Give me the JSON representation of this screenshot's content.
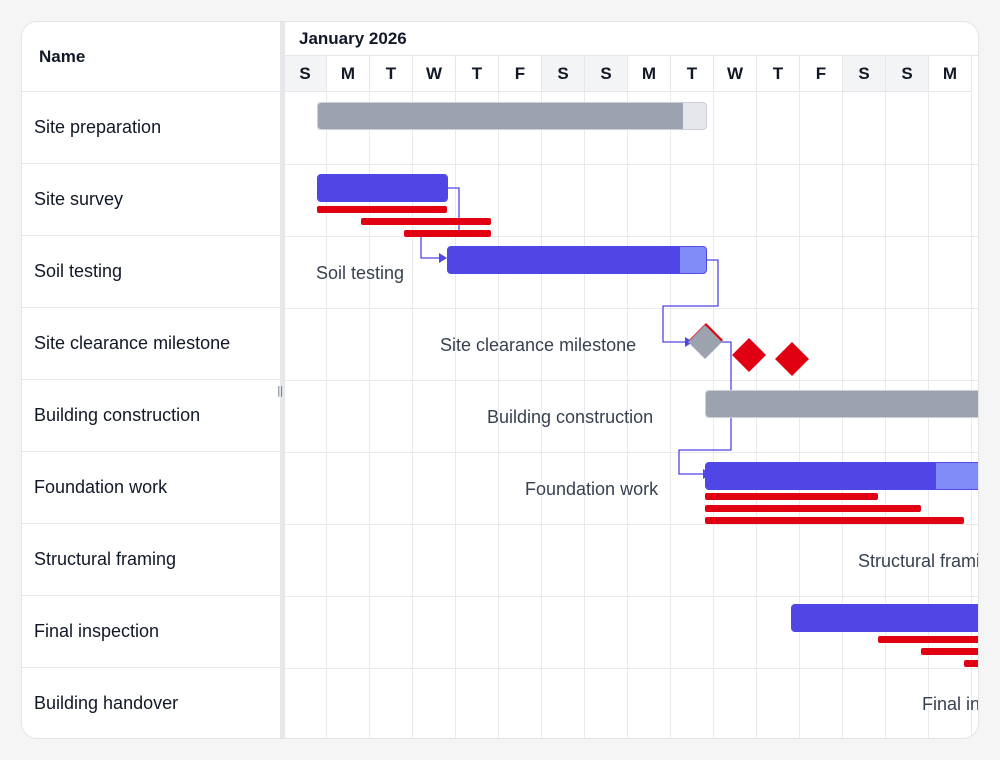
{
  "grid": {
    "header": "Name",
    "rows": [
      "Site preparation",
      "Site survey",
      "Soil testing",
      "Site clearance milestone",
      "Building construction",
      "Foundation work",
      "Structural framing",
      "Final inspection",
      "Building handover"
    ],
    "splitter_grip": "||"
  },
  "timeline": {
    "month": "January 2026",
    "days": [
      "S",
      "M",
      "T",
      "W",
      "T",
      "F",
      "S",
      "S",
      "M",
      "T",
      "W",
      "T",
      "F",
      "S",
      "S",
      "M"
    ],
    "weekend_days": [
      0,
      6,
      7,
      13,
      14
    ]
  },
  "task_labels": {
    "soil_testing": "Soil testing",
    "site_clearance": "Site clearance milestone",
    "building_construction": "Building construction",
    "foundation_work": "Foundation work",
    "structural_framing": "Structural framing",
    "final_inspection": "Final inspection"
  },
  "progress": {
    "site_preparation": 0.94,
    "site_survey": 1.0,
    "soil_testing": 0.9,
    "building_construction": 0.0,
    "foundation_work": 0.8,
    "final_inspection": 0.95
  },
  "colors": {
    "task_bar": "#4f46e5",
    "task_bar_remaining": "#818cf8",
    "summary_bar": "#9ca3af",
    "baseline": "#e10011",
    "milestone": "#9ca3af",
    "dependency_line": "#4f46e5"
  }
}
